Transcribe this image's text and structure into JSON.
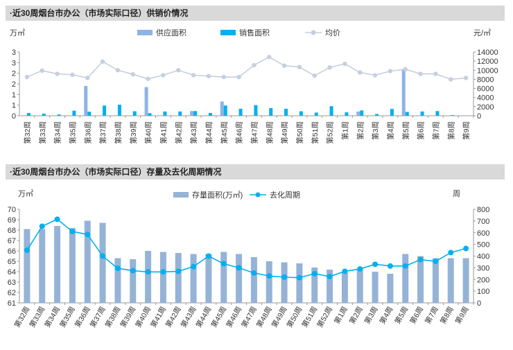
{
  "panel1": {
    "title": "·近30周烟台市办公（市场实际口径）供销价情况"
  },
  "panel2": {
    "title": "·近30周烟台市办公（市场实际口径）存量及去化周期情况"
  },
  "colors": {
    "supply": "#8eb4e3",
    "sales": "#00b0f0",
    "price": "#c5cfe0",
    "stock": "#95b3d7",
    "cycle": "#00b0f0"
  },
  "chart_data": [
    {
      "type": "bar",
      "left_unit": "万㎡",
      "right_unit": "元/㎡",
      "categories": [
        "第32周",
        "第33周",
        "第34周",
        "第35周",
        "第36周",
        "第37周",
        "第38周",
        "第39周",
        "第40周",
        "第41周",
        "第42周",
        "第43周",
        "第44周",
        "第45周",
        "第46周",
        "第47周",
        "第48周",
        "第49周",
        "第50周",
        "第51周",
        "第52周",
        "第1周",
        "第2周",
        "第3周",
        "第4周",
        "第5周",
        "第6周",
        "第7周",
        "第8周",
        "第9周"
      ],
      "yticks_left": [
        "0",
        "1",
        "1",
        "2",
        "2",
        "3",
        "3"
      ],
      "ylim_left": [
        0,
        3
      ],
      "ylim_right": [
        0,
        14000
      ],
      "yticks_right": [
        0,
        2000,
        4000,
        6000,
        8000,
        10000,
        12000,
        14000
      ],
      "legend": [
        "供应面积",
        "销售面积",
        "均价"
      ],
      "series": [
        {
          "name": "供应面积",
          "type": "bar",
          "axis": "left",
          "values": [
            0,
            0,
            0,
            0,
            1.4,
            0,
            0,
            0,
            1.35,
            0,
            0,
            0.22,
            0,
            0.67,
            0,
            0,
            0,
            0,
            0,
            0,
            0,
            0,
            0.2,
            0,
            0,
            2.2,
            0,
            0,
            0,
            0
          ]
        },
        {
          "name": "销售面积",
          "type": "bar",
          "axis": "left",
          "values": [
            0.13,
            0.1,
            0.06,
            0.24,
            0.19,
            0.48,
            0.52,
            0.21,
            0.12,
            0.2,
            0.2,
            0.22,
            0.13,
            0.48,
            0.33,
            0.5,
            0.36,
            0.33,
            0.21,
            0.15,
            0.45,
            0.16,
            0.25,
            0.08,
            0.32,
            0.18,
            0.2,
            0.22,
            0.03,
            0
          ]
        },
        {
          "name": "均价",
          "type": "line",
          "axis": "right",
          "values": [
            8500,
            9900,
            9200,
            9000,
            8300,
            11900,
            10000,
            9100,
            8100,
            8900,
            10000,
            8900,
            8700,
            8500,
            8500,
            11100,
            12900,
            11000,
            10700,
            8800,
            10600,
            11400,
            9500,
            8900,
            9800,
            10200,
            9200,
            9200,
            8000,
            8300
          ]
        }
      ]
    },
    {
      "type": "bar",
      "left_unit": "万㎡",
      "right_unit": "周",
      "categories": [
        "第32周",
        "第33周",
        "第34周",
        "第35周",
        "第36周",
        "第37周",
        "第38周",
        "第39周",
        "第40周",
        "第41周",
        "第42周",
        "第43周",
        "第44周",
        "第45周",
        "第46周",
        "第47周",
        "第48周",
        "第49周",
        "第50周",
        "第51周",
        "第52周",
        "第1周",
        "第2周",
        "第3周",
        "第4周",
        "第5周",
        "第6周",
        "第7周",
        "第8周",
        "第9周"
      ],
      "ylim_left": [
        61,
        70
      ],
      "ylim_right": [
        0,
        800
      ],
      "legend": [
        "存量面积(万㎡)",
        "去化周期"
      ],
      "series": [
        {
          "name": "存量面积(万㎡)",
          "type": "bar",
          "axis": "left",
          "values": [
            68.1,
            68.1,
            68.4,
            68.2,
            68.9,
            68.7,
            65.3,
            65.2,
            66.0,
            65.9,
            65.8,
            65.7,
            65.7,
            65.9,
            65.7,
            65.4,
            65.0,
            64.9,
            64.8,
            64.4,
            64.2,
            63.9,
            64.3,
            64.0,
            63.8,
            65.7,
            65.5,
            65.3,
            65.3,
            65.3
          ]
        },
        {
          "name": "去化周期",
          "type": "line",
          "axis": "right",
          "values": [
            450,
            655,
            715,
            610,
            585,
            400,
            295,
            275,
            265,
            265,
            270,
            310,
            400,
            335,
            300,
            255,
            230,
            220,
            215,
            250,
            225,
            270,
            290,
            330,
            315,
            315,
            370,
            355,
            430,
            465
          ]
        }
      ]
    }
  ]
}
